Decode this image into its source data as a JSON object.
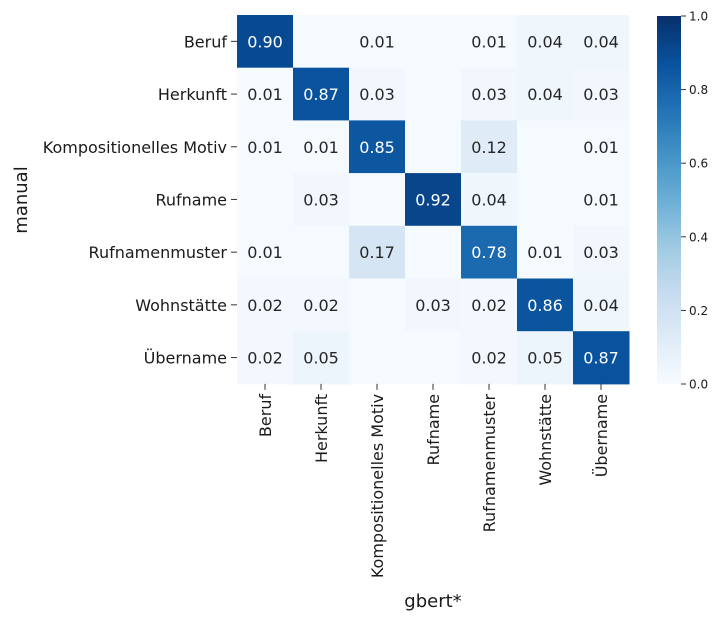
{
  "chart_data": {
    "type": "heatmap",
    "title": "",
    "xlabel": "gbert*",
    "ylabel": "manual",
    "x_categories": [
      "Beruf",
      "Herkunft",
      "Kompositionelles Motiv",
      "Rufname",
      "Rufnamenmuster",
      "Wohnstätte",
      "Übername"
    ],
    "y_categories": [
      "Beruf",
      "Herkunft",
      "Kompositionelles Motiv",
      "Rufname",
      "Rufnamenmuster",
      "Wohnstätte",
      "Übername"
    ],
    "values": [
      [
        0.9,
        null,
        0.01,
        null,
        0.01,
        0.04,
        0.04
      ],
      [
        0.01,
        0.87,
        0.03,
        null,
        0.03,
        0.04,
        0.03
      ],
      [
        0.01,
        0.01,
        0.85,
        null,
        0.12,
        null,
        0.01
      ],
      [
        null,
        0.03,
        null,
        0.92,
        0.04,
        null,
        0.01
      ],
      [
        0.01,
        null,
        0.17,
        null,
        0.78,
        0.01,
        0.03
      ],
      [
        0.02,
        0.02,
        null,
        0.03,
        0.02,
        0.86,
        0.04
      ],
      [
        0.02,
        0.05,
        null,
        null,
        0.02,
        0.05,
        0.87
      ]
    ],
    "colorbar": {
      "colormap": "Blues",
      "range": [
        0.0,
        1.0
      ],
      "ticks": [
        0.0,
        0.2,
        0.4,
        0.6,
        0.8,
        1.0
      ],
      "tick_labels": [
        "0.0",
        "0.2",
        "0.4",
        "0.6",
        "0.8",
        "1.0"
      ]
    }
  }
}
